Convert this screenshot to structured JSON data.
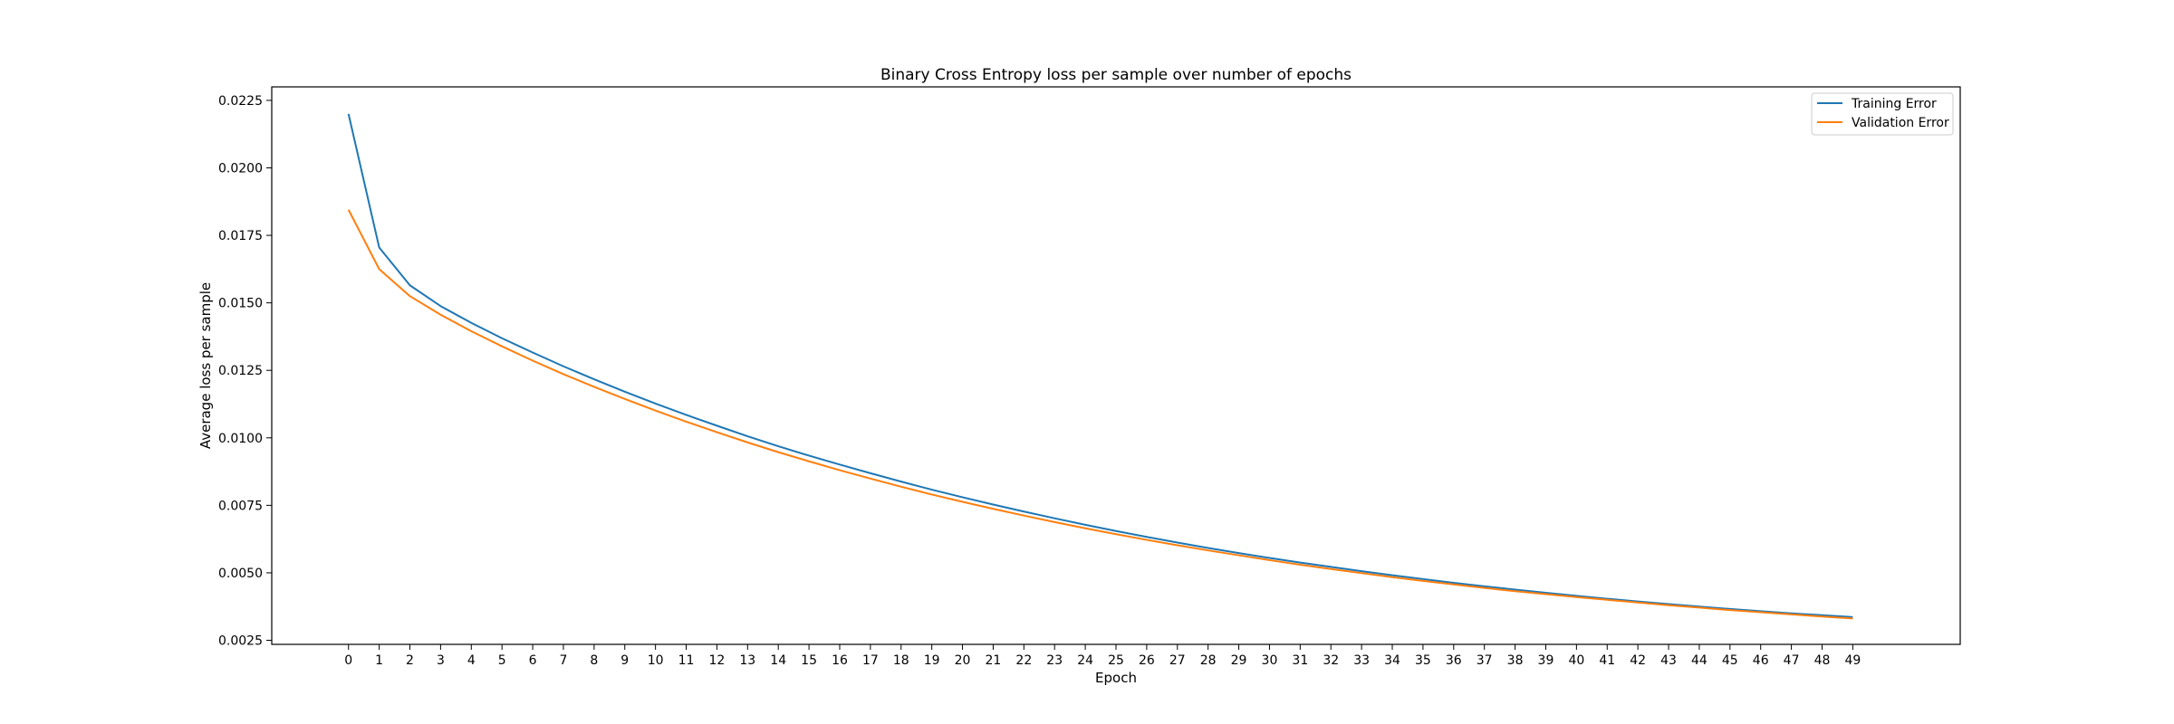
{
  "chart_data": {
    "type": "line",
    "title": "Binary Cross Entropy loss per sample over number of epochs",
    "xlabel": "Epoch",
    "ylabel": "Average loss per sample",
    "x": [
      0,
      1,
      2,
      3,
      4,
      5,
      6,
      7,
      8,
      9,
      10,
      11,
      12,
      13,
      14,
      15,
      16,
      17,
      18,
      19,
      20,
      21,
      22,
      23,
      24,
      25,
      26,
      27,
      28,
      29,
      30,
      31,
      32,
      33,
      34,
      35,
      36,
      37,
      38,
      39,
      40,
      41,
      42,
      43,
      44,
      45,
      46,
      47,
      48,
      49
    ],
    "x_ticks": [
      0,
      1,
      2,
      3,
      4,
      5,
      6,
      7,
      8,
      9,
      10,
      11,
      12,
      13,
      14,
      15,
      16,
      17,
      18,
      19,
      20,
      21,
      22,
      23,
      24,
      25,
      26,
      27,
      28,
      29,
      30,
      31,
      32,
      33,
      34,
      35,
      36,
      37,
      38,
      39,
      40,
      41,
      42,
      43,
      44,
      45,
      46,
      47,
      48,
      49
    ],
    "y_ticks": [
      "0.0025",
      "0.0050",
      "0.0075",
      "0.0100",
      "0.0125",
      "0.0150",
      "0.0175",
      "0.0200",
      "0.0225"
    ],
    "xlim": [
      -2.5,
      52.5
    ],
    "ylim": [
      0.00235,
      0.023
    ],
    "grid": false,
    "legend_position": "top-right",
    "series": [
      {
        "name": "Training Error",
        "color": "#1f77b4",
        "values": [
          0.022,
          0.01705,
          0.01565,
          0.01488,
          0.01426,
          0.01369,
          0.01316,
          0.01265,
          0.01217,
          0.01171,
          0.01127,
          0.01085,
          0.01045,
          0.01006,
          0.00969,
          0.00934,
          0.00901,
          0.00869,
          0.00838,
          0.00808,
          0.0078,
          0.00753,
          0.00727,
          0.00702,
          0.00678,
          0.00655,
          0.00633,
          0.00612,
          0.00592,
          0.00573,
          0.00555,
          0.00538,
          0.00522,
          0.00506,
          0.00491,
          0.00477,
          0.00463,
          0.0045,
          0.00438,
          0.00426,
          0.00415,
          0.00404,
          0.00394,
          0.00384,
          0.00375,
          0.00366,
          0.00358,
          0.0035,
          0.00343,
          0.00336
        ]
      },
      {
        "name": "Validation Error",
        "color": "#ff7f0e",
        "values": [
          0.01845,
          0.01625,
          0.01525,
          0.01456,
          0.01395,
          0.01339,
          0.01286,
          0.01236,
          0.01189,
          0.01144,
          0.01101,
          0.0106,
          0.01021,
          0.00983,
          0.00947,
          0.00913,
          0.0088,
          0.00849,
          0.00819,
          0.0079,
          0.00763,
          0.00737,
          0.00712,
          0.00688,
          0.00665,
          0.00643,
          0.00622,
          0.00602,
          0.00583,
          0.00565,
          0.00547,
          0.0053,
          0.00514,
          0.00499,
          0.00484,
          0.0047,
          0.00457,
          0.00444,
          0.00432,
          0.00421,
          0.0041,
          0.004,
          0.0039,
          0.0038,
          0.00371,
          0.00362,
          0.00354,
          0.00346,
          0.00338,
          0.00331
        ]
      }
    ]
  }
}
